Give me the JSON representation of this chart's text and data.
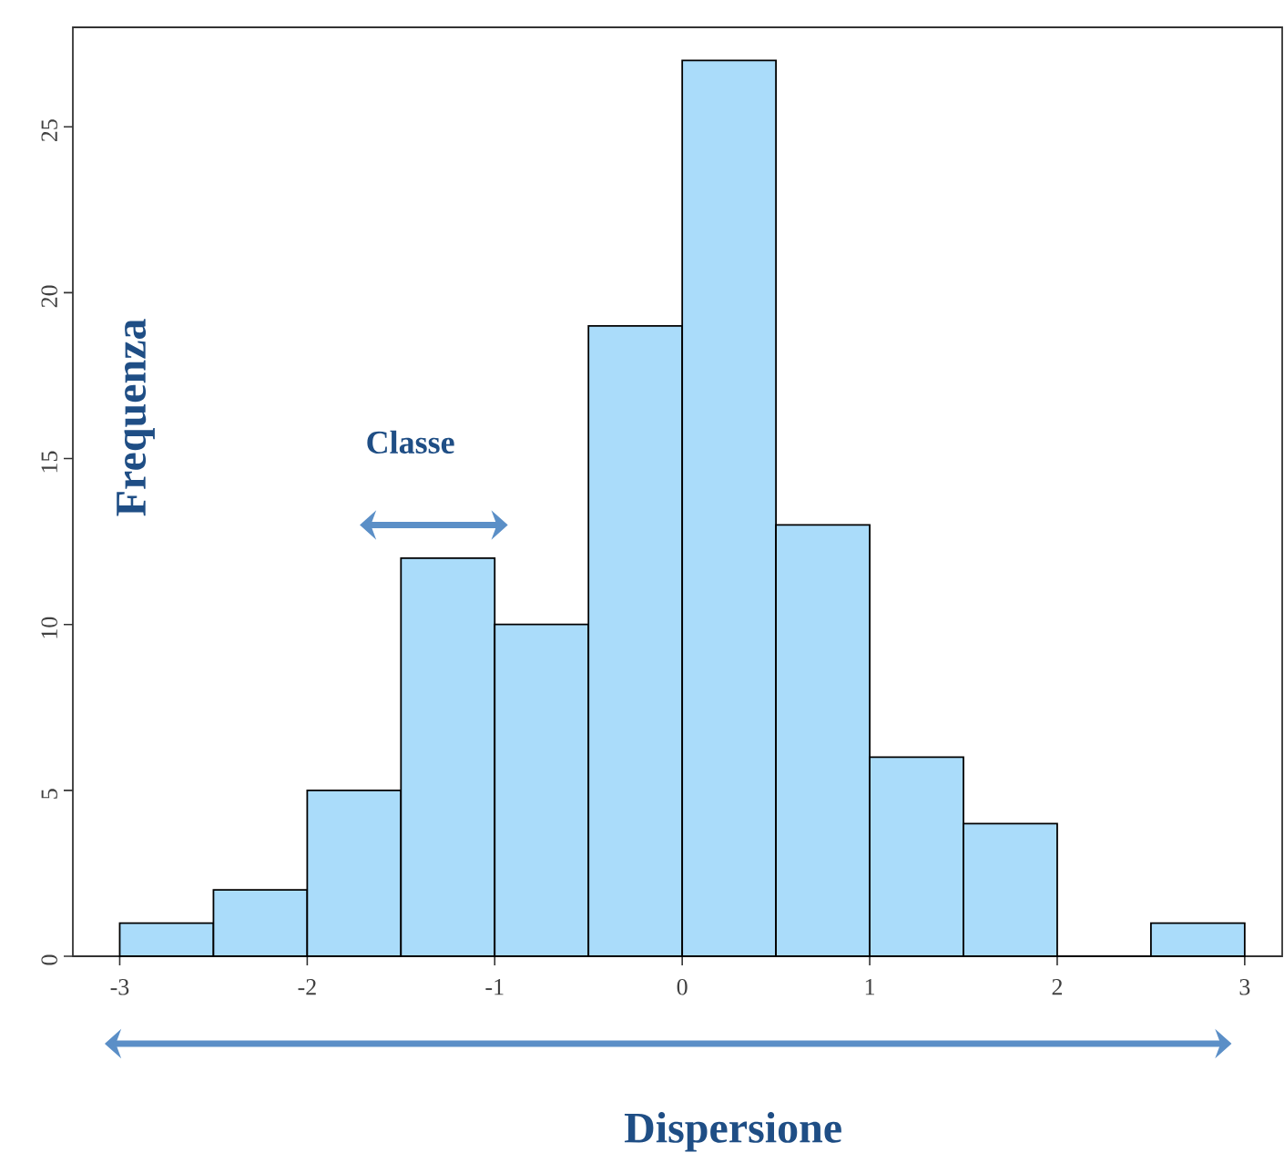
{
  "chart_data": {
    "type": "histogram",
    "xlabel": "Dispersione",
    "ylabel": "Frequenza",
    "annotations": [
      "Classe"
    ],
    "bins": [
      -3,
      -2.5,
      -2,
      -1.5,
      -1,
      -0.5,
      0,
      0.5,
      1,
      1.5,
      2,
      2.5,
      3
    ],
    "values": [
      1,
      2,
      5,
      12,
      10,
      19,
      27,
      13,
      6,
      4,
      0,
      1
    ],
    "color": "#aadcfa",
    "xlim": [
      -3.25,
      3.2
    ],
    "ylim": [
      0,
      28
    ],
    "xticks": [
      -3,
      -2,
      -1,
      0,
      1,
      2,
      3
    ],
    "yticks": [
      0,
      5,
      10,
      15,
      20,
      25
    ],
    "grid": false
  }
}
